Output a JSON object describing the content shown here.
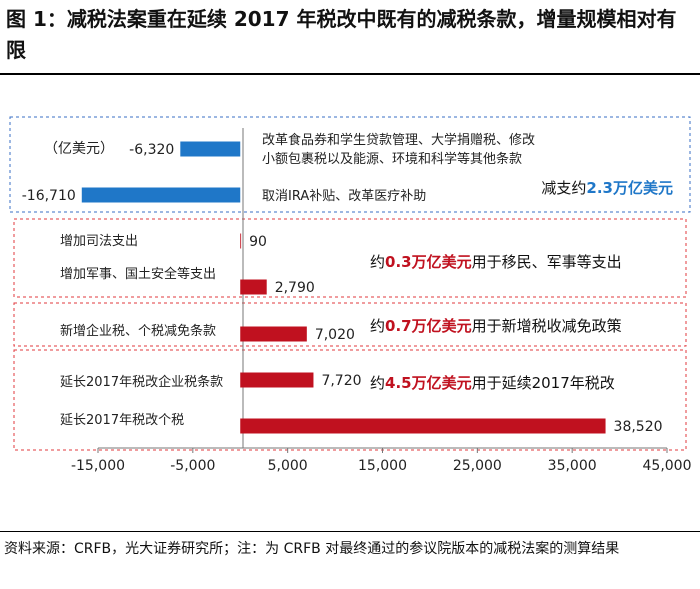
{
  "figure": {
    "title": "图 1：减税法案重在延续 2017 年税改中既有的减税条款，增量规模相对有限",
    "source_note": "资料来源：CRFB，光大证券研究所；注：为 CRFB 对最终通过的参议院版本的减税法案的测算结果"
  },
  "chart_data": {
    "type": "bar",
    "orientation": "horizontal",
    "unit_label": "（亿美元）",
    "categories": [
      "改革食品券和学生贷款管理、大学捐赠税、修改小额包裹税以及能源、环境和科学等其他条款",
      "取消IRA补贴、改革医疗补助",
      "增加司法支出",
      "增加军事、国土安全等支出",
      "新增企业税、个税减免条款",
      "延长2017年税改企业税条款",
      "延长2017年税改个税"
    ],
    "values": [
      -6320,
      -16710,
      90,
      2790,
      7020,
      7720,
      38520
    ],
    "value_labels": [
      "-6,320",
      "-16,710",
      "90",
      "2,790",
      "7,020",
      "7,720",
      "38,520"
    ],
    "xlim": [
      -15000,
      45000
    ],
    "x_ticks": [
      -15000,
      -5000,
      5000,
      15000,
      25000,
      35000,
      45000
    ],
    "x_tick_labels": [
      "-15,000",
      "-5,000",
      "5,000",
      "15,000",
      "25,000",
      "35,000",
      "45,000"
    ],
    "grid": false,
    "colors": {
      "negative": "#1f77c8",
      "positive": "#c0111f",
      "box_blue": "#3a6fc4",
      "box_red": "#e0393e",
      "note_highlight_blue": "#1f77c8",
      "note_highlight_red": "#c0111f"
    },
    "annotations": [
      {
        "group": "减支",
        "prefix": "减支约",
        "highlight": "2.3万亿美元",
        "suffix": ""
      },
      {
        "group": "移民军事",
        "prefix": "约",
        "highlight": "0.3万亿美元",
        "suffix": "用于移民、军事等支出"
      },
      {
        "group": "新增减免",
        "prefix": "约",
        "highlight": "0.7万亿美元",
        "suffix": "用于新增税收减免政策"
      },
      {
        "group": "延续",
        "prefix": "约",
        "highlight": "4.5万亿美元",
        "suffix": "用于延续2017年税改"
      }
    ]
  }
}
